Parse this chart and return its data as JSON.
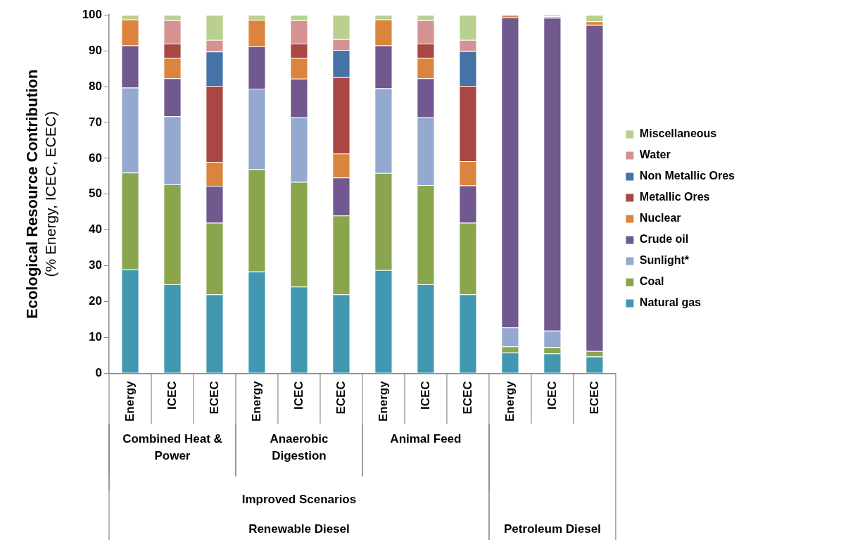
{
  "chart_data": {
    "type": "bar",
    "stacked": true,
    "ylabel": "Ecological Resource Contribution\n(% Energy, ICEC, ECEC)",
    "categories": [
      "Energy",
      "ICEC",
      "ECEC",
      "Energy",
      "ICEC",
      "ECEC",
      "Energy",
      "ICEC",
      "ECEC",
      "Energy",
      "ICEC",
      "ECEC"
    ],
    "annotations": [
      "Combined Heat & Power",
      "Anaerobic Digestion",
      "Animal Feed",
      "Improved Scenarios",
      "Renewable Diesel",
      "Petroleum Diesel"
    ],
    "ylim": [
      0,
      100
    ],
    "yticks": [
      0,
      10,
      20,
      30,
      40,
      50,
      60,
      70,
      80,
      90,
      100
    ],
    "grid": false,
    "legend": "right",
    "series": [
      {
        "name": "Natural gas",
        "color": "#4198b0",
        "values": [
          29,
          24.8,
          22,
          28.4,
          24.2,
          22,
          28.8,
          24.8,
          22,
          5.8,
          5.5,
          4.7
        ]
      },
      {
        "name": "Coal",
        "color": "#8aa64c",
        "values": [
          27,
          27.9,
          20,
          28.6,
          29.2,
          22,
          27.1,
          27.7,
          20,
          1.7,
          1.8,
          1.5
        ]
      },
      {
        "name": "Sunlight*",
        "color": "#93a9cf",
        "values": [
          23.7,
          19,
          0,
          22.4,
          18,
          0,
          23.6,
          18.9,
          0,
          5.3,
          4.6,
          0
        ]
      },
      {
        "name": "Crude oil",
        "color": "#71588f",
        "values": [
          11.8,
          10.6,
          10.3,
          11.8,
          10.8,
          10.6,
          12,
          10.9,
          10.4,
          86.5,
          87.3,
          91
        ]
      },
      {
        "name": "Nuclear",
        "color": "#db843d",
        "values": [
          7.2,
          5.7,
          6.7,
          7.4,
          5.8,
          6.7,
          7.2,
          5.7,
          6.8,
          0.7,
          0.4,
          1
        ]
      },
      {
        "name": "Metallic Ores",
        "color": "#aa4643",
        "values": [
          0,
          4,
          21.2,
          0,
          4,
          21.3,
          0,
          4,
          21,
          0,
          0,
          0
        ]
      },
      {
        "name": "Non Metallic Ores",
        "color": "#4572a7",
        "values": [
          0,
          0,
          9.6,
          0,
          0,
          7.6,
          0,
          0,
          9.7,
          0,
          0,
          0
        ]
      },
      {
        "name": "Water",
        "color": "#d49392",
        "values": [
          0,
          6.5,
          3.2,
          0,
          6.5,
          3,
          0,
          6.5,
          3.1,
          0,
          0.4,
          0
        ]
      },
      {
        "name": "Miscellaneous",
        "color": "#b9d08f",
        "values": [
          1.3,
          1.5,
          7,
          1.4,
          1.5,
          6.8,
          1.3,
          1.5,
          7,
          0,
          0,
          1.8
        ]
      }
    ]
  }
}
